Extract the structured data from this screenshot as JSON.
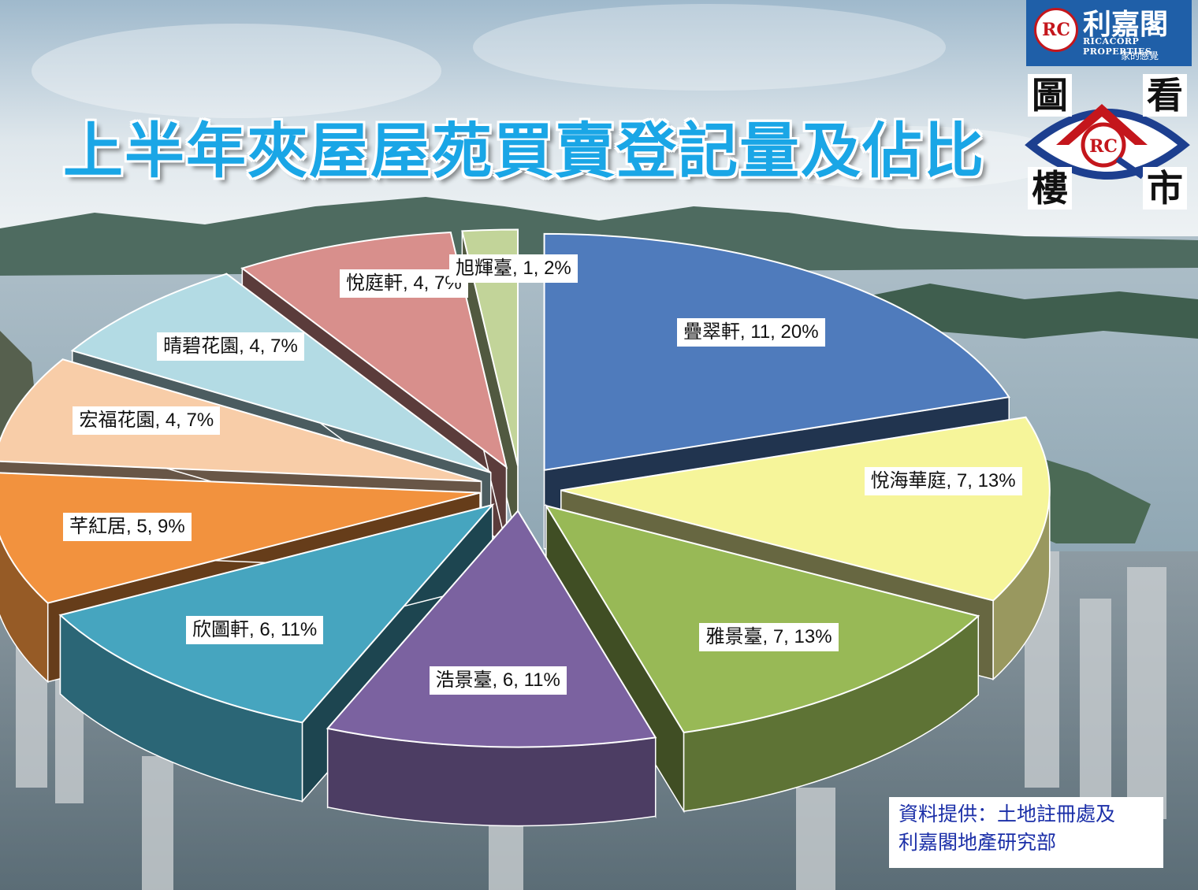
{
  "title": "上半年夾屋屋苑買賣登記量及佔比",
  "brand": {
    "mark": "RC",
    "name": "利嘉閣",
    "english": "RICACORP PROPERTIES",
    "slogan": "家的感覺"
  },
  "logo_chars": [
    "圖",
    "看",
    "樓",
    "市"
  ],
  "source_lines": [
    "資料提供：土地註冊處及",
    "利嘉閣地產研究部"
  ],
  "chart_data": {
    "type": "pie",
    "title": "上半年夾屋屋苑買賣登記量及佔比",
    "slices": [
      {
        "name": "疊翠軒",
        "value": 11,
        "percent": 20,
        "label": "疊翠軒, 11, 20%",
        "color": "#4f7bbc"
      },
      {
        "name": "悅海華庭",
        "value": 7,
        "percent": 13,
        "label": "悅海華庭, 7, 13%",
        "color": "#f6f59a"
      },
      {
        "name": "雅景臺",
        "value": 7,
        "percent": 13,
        "label": "雅景臺, 7, 13%",
        "color": "#98b956"
      },
      {
        "name": "浩景臺",
        "value": 6,
        "percent": 11,
        "label": "浩景臺, 6, 11%",
        "color": "#7b62a0"
      },
      {
        "name": "欣圖軒",
        "value": 6,
        "percent": 11,
        "label": "欣圖軒, 6, 11%",
        "color": "#46a5bf"
      },
      {
        "name": "芊紅居",
        "value": 5,
        "percent": 9,
        "label": "芊紅居, 5, 9%",
        "color": "#f2923e"
      },
      {
        "name": "宏福花園",
        "value": 4,
        "percent": 7,
        "label": "宏福花園, 4, 7%",
        "color": "#f8cda8"
      },
      {
        "name": "晴碧花園",
        "value": 4,
        "percent": 7,
        "label": "晴碧花園, 4, 7%",
        "color": "#b3dbe4"
      },
      {
        "name": "悅庭軒",
        "value": 4,
        "percent": 7,
        "label": "悅庭軒, 4, 7%",
        "color": "#d88f8c"
      },
      {
        "name": "旭輝臺",
        "value": 1,
        "percent": 2,
        "label": "旭輝臺, 1, 2%",
        "color": "#c2d499"
      }
    ],
    "legend": "none",
    "style": "3d-exploded"
  }
}
